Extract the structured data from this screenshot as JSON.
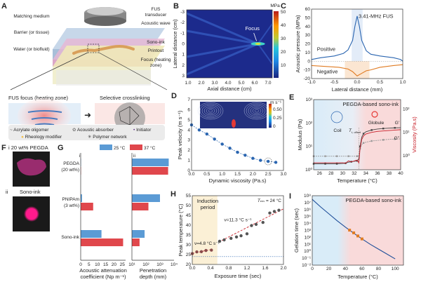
{
  "panels": {
    "A": {
      "letter": "A",
      "labels_left": [
        "Matching medium",
        "Barrier (or tissue)",
        "Water (or biofluid)"
      ],
      "labels_right": [
        "FUS transducer",
        "Acoustic wave",
        "Sono-ink",
        "Printout",
        "Focus (heating zone)"
      ],
      "sub_left": "FUS focus (heating zone)",
      "sub_right": "Selective crosslinking",
      "legend": [
        "Acrylate oligomer",
        "Acoustic absorber",
        "Initiator",
        "Rheology modifier",
        "Polymer network"
      ]
    },
    "F": {
      "letter": "F",
      "i": "i",
      "i_label": "20 wt% PEGDA",
      "ii": "ii",
      "ii_label": "Sono-ink"
    }
  },
  "chart_data": [
    {
      "id": "B",
      "letter": "B",
      "type": "heatmap",
      "xlabel": "Axial distance (cm)",
      "ylabel": "Lateral distance (cm)",
      "xticks": [
        "1.0",
        "2.0",
        "3.0",
        "4.0",
        "5.0",
        "6.0",
        "7.0"
      ],
      "yticks": [
        "-3",
        "-2",
        "-1",
        "0",
        "1",
        "2",
        "3"
      ],
      "colorbar": {
        "unit": "MPa",
        "ticks": [
          "50",
          "40",
          "30",
          "20",
          "10"
        ],
        "range": [
          0,
          50
        ]
      },
      "annotation": "Focus",
      "focus": {
        "axial_cm": 6.2,
        "lateral_cm": 0
      }
    },
    {
      "id": "C",
      "letter": "C",
      "type": "line",
      "xlabel": "Lateral distance (mm)",
      "ylabel": "Acoustic pressure (MPa)",
      "xlim": [
        -1,
        1
      ],
      "ylim": [
        -20,
        60
      ],
      "xticks": [
        "-1.0",
        "-0.5",
        "0.0",
        "0.5",
        "1.0"
      ],
      "yticks": [
        "60",
        "50",
        "40",
        "30",
        "20",
        "10",
        "0",
        "-10",
        "-20"
      ],
      "annotation": "3.41-MHz FUS",
      "series": [
        {
          "name": "Positive",
          "color": "#2a65b0",
          "x": [
            -1,
            -0.8,
            -0.5,
            -0.3,
            -0.2,
            -0.1,
            -0.05,
            0,
            0.05,
            0.1,
            0.2,
            0.3,
            0.5,
            0.8,
            0.95,
            1
          ],
          "y": [
            2,
            4,
            6,
            9,
            13,
            24,
            40,
            52,
            40,
            24,
            12,
            8,
            6,
            4,
            2,
            0
          ]
        },
        {
          "name": "Negative",
          "color": "#e07b22",
          "x": [
            -1,
            -0.7,
            -0.4,
            -0.2,
            -0.1,
            0,
            0.1,
            0.2,
            0.3,
            0.5,
            0.8,
            1
          ],
          "y": [
            -5,
            -6,
            -7,
            -9,
            -12,
            -17,
            -14,
            -11,
            -10,
            -7,
            -5,
            -4
          ]
        }
      ]
    },
    {
      "id": "D",
      "letter": "D",
      "type": "scatter",
      "xlabel": "Dynamic viscosity (Pa.s)",
      "ylabel": "Peak velocity (m s⁻¹)",
      "xlim": [
        0,
        3
      ],
      "ylim": [
        0,
        7
      ],
      "xticks": [
        "0.0",
        "0.5",
        "1.0",
        "1.5",
        "2.0",
        "2.5",
        "3.0"
      ],
      "yticks": [
        "7",
        "6",
        "5",
        "4",
        "3",
        "2",
        "1",
        "0"
      ],
      "inset_colorbar": {
        "unit": "m s⁻¹",
        "ticks": [
          "0.50",
          "0.25",
          "0"
        ]
      },
      "x": [
        0,
        0.25,
        0.5,
        0.75,
        1.0,
        1.25,
        1.5,
        1.75,
        2.0,
        2.25,
        2.5,
        2.75
      ],
      "y": [
        4.5,
        4.0,
        3.6,
        3.1,
        2.6,
        2.2,
        1.8,
        1.5,
        1.2,
        1.0,
        0.9,
        0.8
      ],
      "highlight_x": 2.5,
      "color": "#2a65b0"
    },
    {
      "id": "E",
      "letter": "E",
      "type": "line",
      "title": "PEGDA-based sono-ink",
      "xlabel": "Temperature (°C)",
      "ylabel": "Modulus (Pa)",
      "y2label": "Viscosity (Pa.s)",
      "xlim": [
        25,
        40
      ],
      "ylim_log": [
        0,
        3
      ],
      "y2lim_log": [
        -0.6,
        2.4
      ],
      "xticks": [
        "26",
        "28",
        "30",
        "32",
        "34",
        "36",
        "38",
        "40"
      ],
      "yticks": [
        "10³",
        "10²",
        "10¹",
        "10⁰"
      ],
      "y2ticks": [
        "10²",
        "10¹",
        "10⁰"
      ],
      "annotations": [
        "Coil",
        "Globule",
        "T",
        "t, offset",
        "G'",
        "G\""
      ],
      "series": [
        {
          "name": "G'",
          "color": "#444444",
          "x": [
            25,
            26,
            27,
            28,
            29,
            30,
            30.5,
            31,
            31.5,
            32,
            32.5,
            32.8,
            33,
            33.3,
            33.6,
            34,
            35,
            36,
            37,
            38,
            39,
            40
          ],
          "y": [
            1.8,
            1.8,
            1.8,
            1.8,
            1.8,
            1.85,
            1.9,
            2.1,
            2.2,
            2.3,
            2.4,
            3,
            10,
            25,
            35,
            42,
            50,
            55,
            58,
            60,
            62,
            63
          ]
        },
        {
          "name": "G\"",
          "color": "#999999",
          "x": [
            25,
            26,
            27,
            28,
            29,
            30,
            31,
            32,
            32.5,
            32.8,
            33,
            33.3,
            33.6,
            34,
            35,
            36,
            37,
            38,
            39,
            40
          ],
          "y": [
            3.8,
            3.8,
            3.8,
            3.8,
            3.8,
            3.8,
            3.8,
            3.8,
            3.8,
            3.9,
            8,
            12,
            14,
            15,
            17,
            18,
            19,
            20,
            20.5,
            21
          ]
        },
        {
          "name": "Viscosity",
          "axis": "right",
          "color": "#c8202a",
          "x": [
            25,
            26,
            27,
            28,
            29,
            30,
            30.5,
            31,
            31.5,
            32,
            32.5,
            32.8,
            33,
            33.3,
            33.6,
            34,
            35,
            36,
            37,
            38,
            39,
            40
          ],
          "y": [
            0.5,
            0.5,
            0.5,
            0.5,
            0.5,
            0.5,
            0.48,
            0.6,
            0.55,
            0.6,
            0.65,
            0.5,
            2,
            5,
            7,
            8.5,
            10,
            11,
            11.5,
            12,
            12.5,
            13
          ]
        }
      ],
      "regions": [
        {
          "label": "coil",
          "color": "#d9ecf8"
        },
        {
          "label": "globule",
          "color": "#f9dada"
        }
      ]
    },
    {
      "id": "G",
      "letter": "G",
      "type": "bar",
      "legend": [
        {
          "name": "25 °C",
          "color": "#5b9bd5"
        },
        {
          "name": "37 °C",
          "color": "#e0474c"
        }
      ],
      "categories": [
        "Sono-ink",
        "PNIPAm (3 wt%)",
        "PEGDA (20 wt%)"
      ],
      "category_lines": [
        [
          "Sono-ink"
        ],
        [
          "PNIPAm",
          "(3 wt%)"
        ],
        [
          "PEGDA",
          "(20 wt%)"
        ]
      ],
      "subplots": [
        {
          "sub": "i",
          "xlabel": [
            "Acoustic attenuation",
            "coefficient (Np m⁻¹)"
          ],
          "xlim": [
            0,
            27
          ],
          "xticks": [
            "0",
            "5",
            "10",
            "15",
            "20",
            "25"
          ],
          "series": [
            {
              "name": "25 °C",
              "values": [
                12.5,
                0.8,
                0
              ]
            },
            {
              "name": "37 °C",
              "values": [
                25.5,
                7.5,
                0.2
              ]
            }
          ]
        },
        {
          "sub": "ii",
          "xlabel": [
            "Penetration",
            "depth (mm)"
          ],
          "scale": "log",
          "xlim_log": [
            1,
            4
          ],
          "xticks": [
            "10¹",
            "10²",
            "10³",
            "10⁴"
          ],
          "series": [
            {
              "name": "25 °C",
              "values": [
                80,
                1000,
                4200
              ]
            },
            {
              "name": "37 °C",
              "values": [
                35,
                150,
                3800
              ]
            }
          ]
        }
      ]
    },
    {
      "id": "H",
      "letter": "H",
      "type": "scatter",
      "xlabel": "Exposure time (sec)",
      "ylabel": "Peak temperature (°C)",
      "xlim": [
        0,
        2
      ],
      "ylim": [
        20,
        55
      ],
      "xticks": [
        "0.0",
        "0.4",
        "0.8",
        "1.2",
        "1.6",
        "2.0"
      ],
      "yticks": [
        "55",
        "50",
        "45",
        "40",
        "35",
        "30",
        "25",
        "20"
      ],
      "region_label": [
        "Induction",
        "period"
      ],
      "region_end": 0.55,
      "env_label": "T",
      "env_sub": "env",
      "env_value": "= 24 °C",
      "baseline": 24,
      "rate1": "ν=4.8 °C s⁻¹",
      "rate2": "ν=11.3 °C s⁻¹",
      "x": [
        0,
        0.1,
        0.2,
        0.3,
        0.42,
        0.6,
        0.7,
        0.85,
        0.97,
        1.07,
        1.2,
        1.3,
        1.4,
        1.55,
        1.7,
        1.8,
        1.9
      ],
      "y": [
        25.5,
        26.4,
        26.5,
        27.1,
        27.3,
        31.8,
        32.5,
        33.3,
        34,
        34.6,
        35.6,
        39.8,
        40.4,
        41.4,
        46.2,
        47,
        47.6
      ]
    },
    {
      "id": "I",
      "letter": "I",
      "type": "line",
      "title": "PEGDA-based sono-ink",
      "xlabel": "Temperature (°C)",
      "ylabel": "Gelation time (sec)",
      "xlim": [
        0,
        110
      ],
      "ylim_log": [
        -2,
        8
      ],
      "xticks": [
        "0",
        "20",
        "40",
        "60",
        "80",
        "100"
      ],
      "yticks": [
        "10⁸",
        "10⁷",
        "10⁶",
        "10⁵",
        "10⁴",
        "10³",
        "10²",
        "10¹",
        "10⁰",
        "10⁻¹",
        "10⁻²"
      ],
      "curve": {
        "x": [
          0,
          10,
          20,
          30,
          40,
          50,
          60,
          70,
          80,
          90,
          100
        ],
        "y": [
          30000000.0,
          2500000.0,
          250000.0,
          25000.0,
          3000,
          400,
          60,
          10,
          2,
          0.4,
          0.08
        ],
        "color": "#1f4e99"
      },
      "points": {
        "x": [
          45,
          50,
          55,
          60
        ],
        "y": [
          1100,
          450,
          160,
          60
        ],
        "color": "#e07b22"
      }
    }
  ]
}
